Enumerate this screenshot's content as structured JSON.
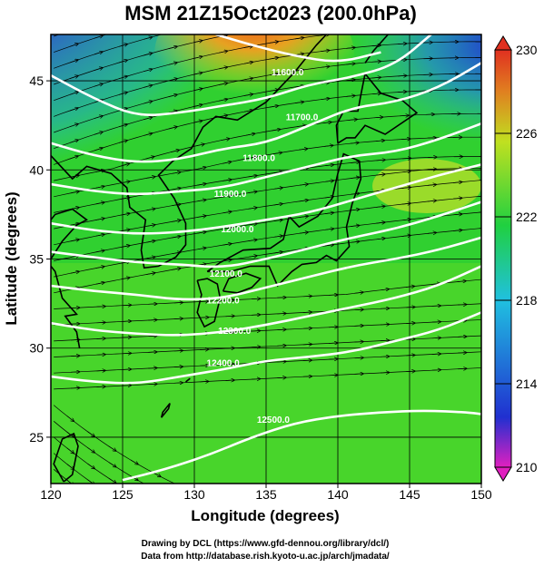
{
  "title": "MSM 21Z15Oct2023 (200.0hPa)",
  "xlabel": "Longitude (degrees)",
  "ylabel": "Latitude  (degrees)",
  "credits": [
    "Drawing by DCL (https://www.gfd-dennou.org/library/dcl/)",
    "Data from http://database.rish.kyoto-u.ac.jp/arch/jmadata/"
  ],
  "colors": {
    "land_outline": "#000000",
    "contour": "#ffffff",
    "grid": "#000000"
  },
  "chart_data": {
    "type": "heatmap",
    "field": "temperature with streamlines and geopotential height contours",
    "xlim": [
      120,
      150
    ],
    "ylim": [
      22.4,
      47.6
    ],
    "xticks": [
      "120",
      "125",
      "130",
      "135",
      "140",
      "145",
      "150"
    ],
    "yticks": [
      "25",
      "30",
      "35",
      "40",
      "45"
    ],
    "grid": true,
    "colorbar": {
      "min": 210,
      "max": 230,
      "ticks": [
        "210",
        "214",
        "218",
        "222",
        "226",
        "230"
      ],
      "stops": [
        "#e020c0",
        "#2030d0",
        "#20c0e0",
        "#20d040",
        "#c0e020",
        "#e08020",
        "#e03020"
      ]
    },
    "contour_labels": [
      {
        "text": "11600.0",
        "lon": 136.5,
        "lat": 45.3
      },
      {
        "text": "11700.0",
        "lon": 137.5,
        "lat": 42.8
      },
      {
        "text": "11800.0",
        "lon": 134.5,
        "lat": 40.5
      },
      {
        "text": "11900.0",
        "lon": 132.5,
        "lat": 38.5
      },
      {
        "text": "12000.0",
        "lon": 133.0,
        "lat": 36.5
      },
      {
        "text": "12100.0",
        "lon": 132.2,
        "lat": 34.0
      },
      {
        "text": "12200.0",
        "lon": 132.0,
        "lat": 32.5
      },
      {
        "text": "12300.0",
        "lon": 132.8,
        "lat": 30.8
      },
      {
        "text": "12400.0",
        "lon": 132.0,
        "lat": 29.0
      },
      {
        "text": "12500.0",
        "lon": 135.5,
        "lat": 25.8
      }
    ],
    "contours": [
      {
        "value": 11600.0,
        "points": [
          [
            131.5,
            47.6
          ],
          [
            134,
            47.0
          ],
          [
            137,
            46.4
          ],
          [
            140,
            46.0
          ],
          [
            143,
            46.6
          ]
        ]
      },
      {
        "value": 11700.0,
        "points": [
          [
            120,
            45.3
          ],
          [
            123,
            44.0
          ],
          [
            126,
            43.0
          ],
          [
            129,
            43.2
          ],
          [
            132,
            43.6
          ],
          [
            135,
            44.0
          ],
          [
            138,
            44.8
          ],
          [
            141,
            45.2
          ],
          [
            144,
            45.9
          ],
          [
            146.5,
            47.6
          ]
        ]
      },
      {
        "value": 11800.0,
        "points": [
          [
            120,
            41.5
          ],
          [
            123,
            40.8
          ],
          [
            126,
            40.4
          ],
          [
            129,
            40.6
          ],
          [
            132,
            41.2
          ],
          [
            135,
            41.5
          ],
          [
            138,
            42.5
          ],
          [
            141,
            43.5
          ],
          [
            144,
            43.8
          ],
          [
            147,
            44.6
          ],
          [
            150,
            46.0
          ]
        ]
      },
      {
        "value": 11900.0,
        "points": [
          [
            120,
            39.2
          ],
          [
            123,
            38.8
          ],
          [
            126,
            38.6
          ],
          [
            129,
            38.8
          ],
          [
            132,
            39.0
          ],
          [
            135,
            39.6
          ],
          [
            138,
            40.2
          ],
          [
            141,
            40.8
          ],
          [
            144,
            41.0
          ],
          [
            147,
            41.7
          ],
          [
            150,
            42.6
          ]
        ]
      },
      {
        "value": 12000.0,
        "points": [
          [
            120,
            37.0
          ],
          [
            123,
            36.6
          ],
          [
            126,
            36.4
          ],
          [
            129,
            36.5
          ],
          [
            132,
            36.8
          ],
          [
            135,
            37.2
          ],
          [
            138,
            37.6
          ],
          [
            141,
            38.3
          ],
          [
            144,
            39.0
          ],
          [
            147,
            39.7
          ],
          [
            150,
            40.3
          ]
        ]
      },
      {
        "value": 12100.0,
        "points": [
          [
            120,
            35.4
          ],
          [
            123,
            35.1
          ],
          [
            126,
            34.8
          ],
          [
            129,
            34.7
          ],
          [
            132,
            34.5
          ],
          [
            135,
            35.0
          ],
          [
            138,
            35.6
          ],
          [
            141,
            36.2
          ],
          [
            144,
            36.7
          ],
          [
            147,
            37.4
          ],
          [
            150,
            38.2
          ]
        ]
      },
      {
        "value": 12200.0,
        "points": [
          [
            120,
            33.5
          ],
          [
            123,
            33.2
          ],
          [
            126,
            33.0
          ],
          [
            129,
            32.7
          ],
          [
            132,
            32.8
          ],
          [
            135,
            33.4
          ],
          [
            138,
            34.0
          ],
          [
            141,
            34.6
          ],
          [
            144,
            35.0
          ],
          [
            147,
            35.5
          ],
          [
            150,
            36.2
          ]
        ]
      },
      {
        "value": 12300.0,
        "points": [
          [
            120,
            31.4
          ],
          [
            123,
            31.0
          ],
          [
            126,
            30.8
          ],
          [
            129,
            30.7
          ],
          [
            132,
            30.9
          ],
          [
            135,
            31.3
          ],
          [
            138,
            31.8
          ],
          [
            141,
            32.3
          ],
          [
            144,
            32.8
          ],
          [
            147,
            33.5
          ],
          [
            150,
            34.6
          ]
        ]
      },
      {
        "value": 12400.0,
        "points": [
          [
            120,
            28.4
          ],
          [
            123,
            28.1
          ],
          [
            126,
            28.0
          ],
          [
            129,
            28.4
          ],
          [
            132,
            28.8
          ],
          [
            135,
            29.3
          ],
          [
            138,
            29.5
          ],
          [
            141,
            29.8
          ],
          [
            144,
            30.4
          ],
          [
            147,
            31.0
          ],
          [
            150,
            32.0
          ]
        ]
      },
      {
        "value": 12500.0,
        "points": [
          [
            125,
            22.6
          ],
          [
            128,
            23.2
          ],
          [
            131,
            24.0
          ],
          [
            134,
            25.0
          ],
          [
            137,
            25.8
          ],
          [
            140,
            26.2
          ],
          [
            143,
            26.4
          ],
          [
            146,
            26.5
          ],
          [
            149,
            26.4
          ],
          [
            150,
            26.3
          ]
        ]
      }
    ]
  }
}
